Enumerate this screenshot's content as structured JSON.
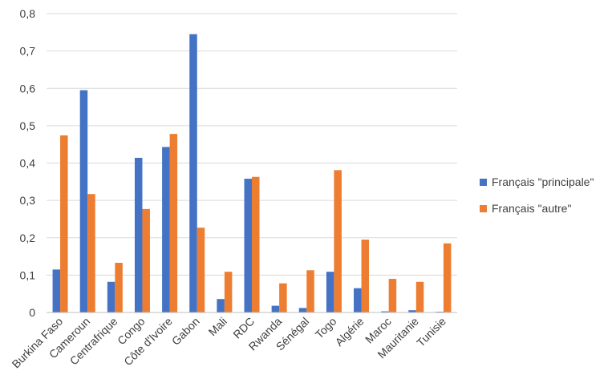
{
  "chart_data": {
    "type": "bar",
    "categories": [
      "Burkina Faso",
      "Cameroun",
      "Centrafrique",
      "Congo",
      "Côte d'Ivoire",
      "Gabon",
      "Mali",
      "RDC",
      "Rwanda",
      "Sénégal",
      "Togo",
      "Algérie",
      "Maroc",
      "Mauritanie",
      "Tunisie"
    ],
    "series": [
      {
        "name": "Français \"principale\"",
        "color": "#4472C4",
        "values": [
          0.115,
          0.595,
          0.082,
          0.414,
          0.443,
          0.745,
          0.036,
          0.358,
          0.018,
          0.012,
          0.109,
          0.065,
          0.003,
          0.006,
          0.002
        ]
      },
      {
        "name": "Français \"autre\"",
        "color": "#ED7D31",
        "values": [
          0.474,
          0.317,
          0.133,
          0.277,
          0.478,
          0.227,
          0.109,
          0.363,
          0.078,
          0.113,
          0.381,
          0.195,
          0.09,
          0.082,
          0.185
        ]
      }
    ],
    "yticks": [
      "0",
      "0,1",
      "0,2",
      "0,3",
      "0,4",
      "0,5",
      "0,6",
      "0,7",
      "0,8"
    ],
    "ylim": [
      0,
      0.8
    ],
    "grid": true,
    "legend_position": "right",
    "gridline_color": "#d9d9d9",
    "axis_color": "#bfbfbf"
  }
}
